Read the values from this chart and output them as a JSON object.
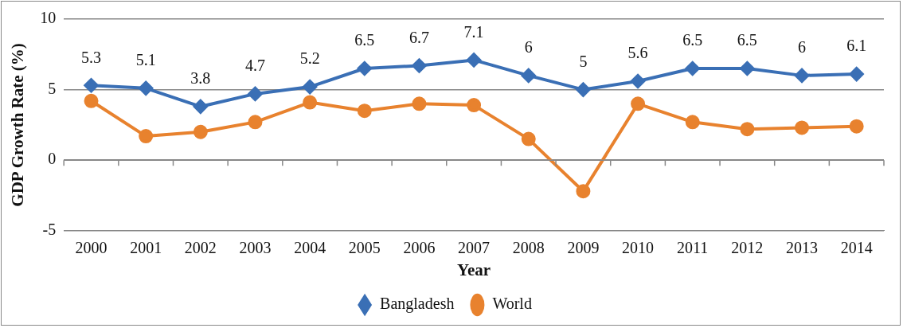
{
  "chart_data": {
    "type": "line",
    "xlabel": "Year",
    "ylabel": "GDP Growth Rate (%)",
    "categories": [
      "2000",
      "2001",
      "2002",
      "2003",
      "2004",
      "2005",
      "2006",
      "2007",
      "2008",
      "2009",
      "2010",
      "2011",
      "2012",
      "2013",
      "2014"
    ],
    "series": [
      {
        "name": "Bangladesh",
        "color": "#3a6fb5",
        "marker": "diamond",
        "values": [
          5.3,
          5.1,
          3.8,
          4.7,
          5.2,
          6.5,
          6.7,
          7.1,
          6,
          5,
          5.6,
          6.5,
          6.5,
          6,
          6.1
        ],
        "value_labels": [
          "5.3",
          "5.1",
          "3.8",
          "4.7",
          "5.2",
          "6.5",
          "6.7",
          "7.1",
          "6",
          "5",
          "5.6",
          "6.5",
          "6.5",
          "6",
          "6.1"
        ]
      },
      {
        "name": "World",
        "color": "#e8822e",
        "marker": "circle",
        "values": [
          4.2,
          1.7,
          2.0,
          2.7,
          4.1,
          3.5,
          4.0,
          3.9,
          1.5,
          -2.2,
          4.0,
          2.7,
          2.2,
          2.3,
          2.4
        ]
      }
    ],
    "ylim": [
      -5,
      10
    ],
    "yticks": [
      -5,
      0,
      5,
      10
    ],
    "grid": "y",
    "legend": "bottom"
  }
}
